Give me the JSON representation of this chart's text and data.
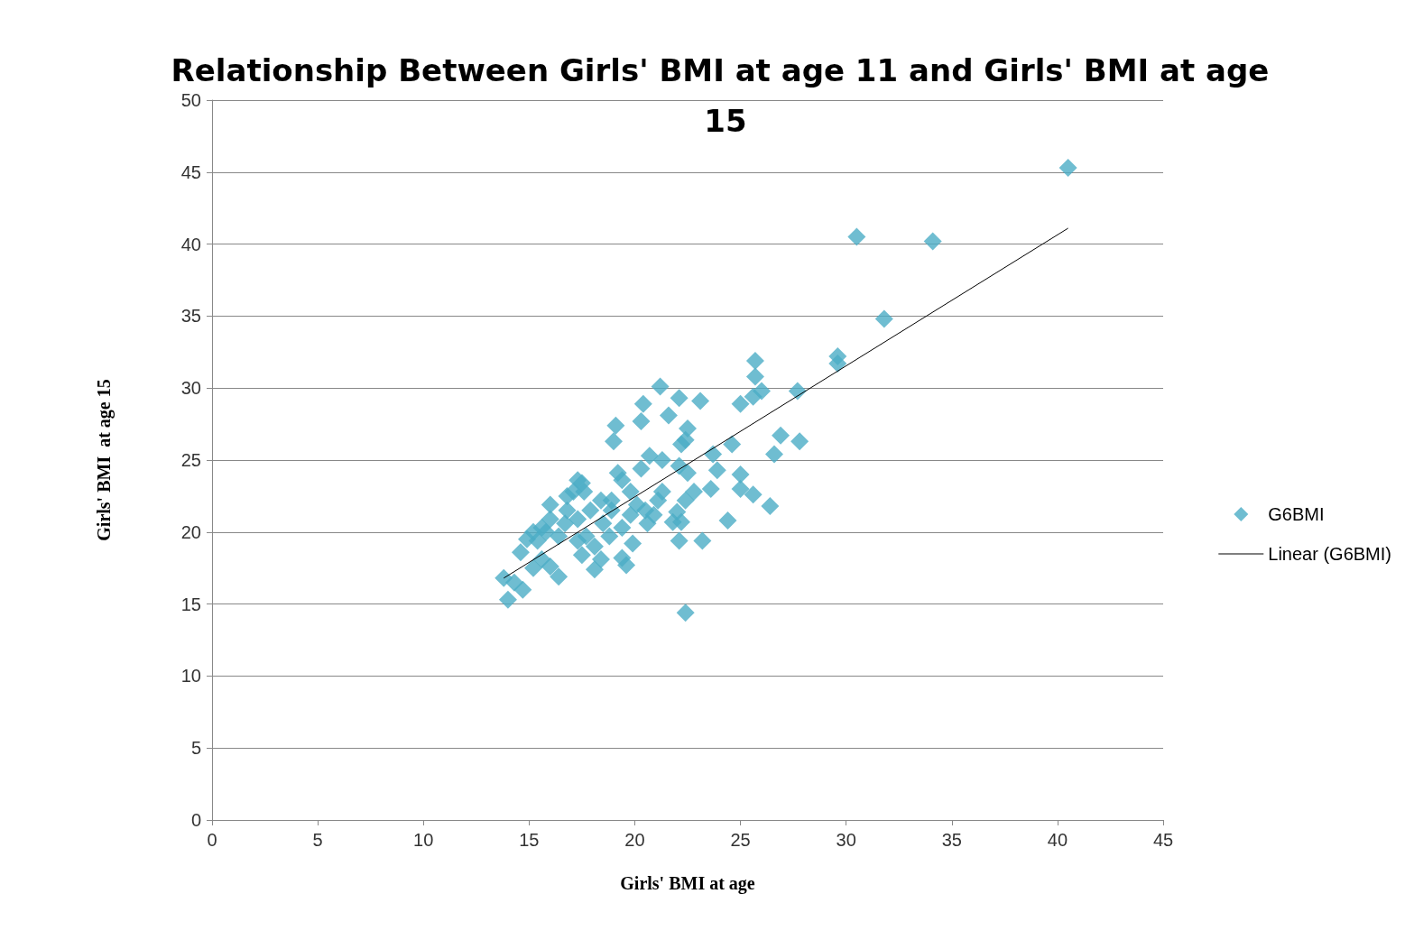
{
  "chart_data": {
    "type": "scatter",
    "title": "Relationship Between Girls' BMI at age 11 and Girls' BMI at age 15",
    "xlabel": "Girls' BMI at age",
    "ylabel": "Girls' BMI  at age 15",
    "xlim": [
      0,
      45
    ],
    "xticks": [
      0,
      5,
      10,
      15,
      20,
      25,
      30,
      35,
      40,
      45
    ],
    "ylim": [
      0,
      50
    ],
    "yticks": [
      0,
      5,
      10,
      15,
      20,
      25,
      30,
      35,
      40,
      45,
      50
    ],
    "grid": "y",
    "legend": "right",
    "marker": "diamond",
    "series": [
      {
        "name": "G6BMI",
        "color": "#4bacc6",
        "x": [
          40.5,
          30.5,
          34.1,
          31.8,
          29.6,
          29.6,
          27.7,
          25.7,
          25.7,
          26.0,
          25.6,
          25.0,
          26.9,
          27.8,
          26.6,
          26.4,
          24.6,
          23.7,
          23.9,
          25.0,
          25.0,
          25.6,
          23.6,
          24.4,
          23.2,
          22.1,
          22.4,
          21.2,
          22.1,
          23.1,
          20.4,
          21.6,
          19.1,
          20.3,
          19.0,
          22.5,
          22.4,
          22.2,
          20.7,
          21.3,
          22.1,
          22.5,
          20.3,
          19.2,
          19.4,
          17.3,
          17.1,
          17.6,
          18.4,
          19.8,
          21.3,
          22.8,
          22.4,
          22.0,
          21.8,
          22.2,
          20.6,
          19.4,
          18.5,
          17.3,
          16.7,
          16.0,
          15.6,
          15.2,
          14.9,
          15.4,
          16.4,
          17.7,
          18.1,
          17.5,
          18.4,
          18.1,
          19.4,
          19.6,
          19.9,
          18.8,
          14.6,
          15.6,
          16.0,
          16.4,
          15.2,
          14.3,
          13.8,
          14.7,
          14.0,
          16.8,
          17.9,
          18.9,
          19.8,
          20.5,
          16.8,
          16.0,
          17.5,
          15.8,
          17.3,
          18.9,
          20.1,
          21.1,
          20.9
        ],
        "values": [
          45.3,
          40.5,
          40.2,
          34.8,
          32.2,
          31.7,
          29.8,
          31.9,
          30.8,
          29.8,
          29.4,
          28.9,
          26.7,
          26.3,
          25.4,
          21.8,
          26.1,
          25.4,
          24.3,
          24.0,
          23.0,
          22.6,
          23.0,
          20.8,
          19.4,
          19.4,
          14.4,
          30.1,
          29.3,
          29.1,
          28.9,
          28.1,
          27.4,
          27.7,
          26.3,
          27.2,
          26.4,
          26.1,
          25.3,
          25.0,
          24.6,
          24.1,
          24.4,
          24.1,
          23.6,
          23.6,
          22.8,
          22.8,
          22.2,
          22.8,
          22.8,
          22.8,
          22.2,
          21.4,
          20.7,
          20.7,
          20.6,
          20.3,
          20.6,
          20.9,
          20.6,
          20.9,
          20.3,
          20.0,
          19.5,
          19.4,
          19.7,
          19.7,
          19.0,
          18.4,
          18.1,
          17.4,
          18.2,
          17.7,
          19.2,
          19.7,
          18.6,
          18.1,
          17.6,
          16.9,
          17.5,
          16.5,
          16.8,
          16.0,
          15.3,
          21.5,
          21.5,
          21.5,
          21.2,
          21.5,
          22.5,
          21.9,
          23.4,
          20.0,
          19.4,
          22.2,
          21.9,
          22.2,
          21.2
        ]
      },
      {
        "name": "Linear (G6BMI)",
        "type": "line",
        "color": "#000000",
        "marker": "none",
        "x": [
          13.8,
          40.5
        ],
        "values": [
          16.8,
          41.1
        ]
      }
    ]
  }
}
